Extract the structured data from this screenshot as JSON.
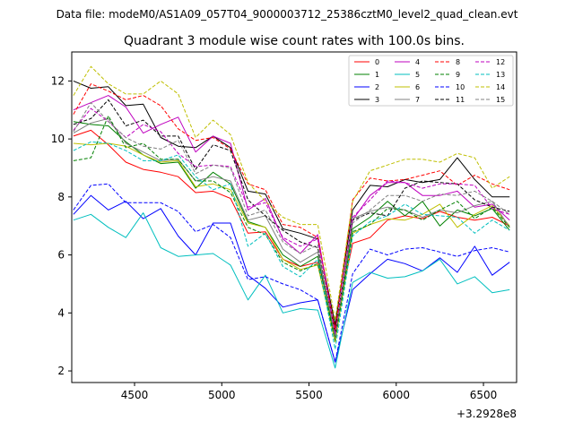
{
  "chart_data": {
    "type": "line",
    "suptitle": "Data file: modeM0/AS1A09_057T04_9000003712_25386cztM0_level2_quad_clean.evt",
    "title": "Quadrant 3 module wise count rates with 100.0s bins.",
    "xlabel": "",
    "ylabel": "",
    "x_offset_label": "+3.2928e8",
    "xlim": [
      4140,
      6690
    ],
    "ylim": [
      1.6,
      13.0
    ],
    "xticks": [
      4500,
      5000,
      5500,
      6000,
      6500
    ],
    "yticks": [
      2,
      4,
      6,
      8,
      10,
      12
    ],
    "grid": false,
    "legend": {
      "placement": "top-right",
      "columns": 4
    },
    "x": [
      4150,
      4250,
      4350,
      4450,
      4550,
      4650,
      4750,
      4850,
      4950,
      5050,
      5150,
      5250,
      5350,
      5450,
      5550,
      5650,
      5750,
      5850,
      5950,
      6050,
      6150,
      6250,
      6350,
      6450,
      6550,
      6650
    ],
    "series": [
      {
        "name": "0",
        "color": "#ff0000",
        "dash": "solid",
        "values": [
          10.1,
          10.3,
          9.8,
          9.2,
          8.95,
          8.85,
          8.7,
          8.15,
          8.2,
          7.95,
          6.75,
          6.8,
          5.85,
          5.6,
          5.75,
          3.5,
          6.4,
          6.6,
          7.2,
          7.35,
          7.25,
          7.5,
          7.3,
          7.2,
          7.3,
          7.0
        ]
      },
      {
        "name": "1",
        "color": "#008000",
        "dash": "solid",
        "values": [
          10.6,
          10.5,
          10.45,
          9.9,
          9.45,
          9.15,
          9.2,
          8.3,
          8.85,
          8.45,
          7.15,
          6.95,
          6.0,
          5.6,
          5.95,
          3.1,
          6.9,
          7.3,
          7.85,
          7.35,
          7.85,
          7.0,
          7.55,
          7.35,
          7.6,
          6.85
        ]
      },
      {
        "name": "2",
        "color": "#0000ff",
        "dash": "solid",
        "values": [
          7.4,
          8.05,
          7.55,
          7.85,
          7.25,
          7.6,
          6.65,
          6.0,
          7.1,
          7.1,
          5.3,
          4.85,
          4.2,
          4.35,
          4.45,
          2.3,
          4.8,
          5.35,
          5.85,
          5.7,
          5.45,
          5.9,
          5.4,
          6.3,
          5.3,
          5.75
        ]
      },
      {
        "name": "3",
        "color": "#000000",
        "dash": "solid",
        "values": [
          12.0,
          11.75,
          11.8,
          11.15,
          11.2,
          10.05,
          9.75,
          9.7,
          10.1,
          9.7,
          8.2,
          8.1,
          6.9,
          6.75,
          6.55,
          3.6,
          7.55,
          8.4,
          8.35,
          8.6,
          8.5,
          8.6,
          9.35,
          8.6,
          8.0,
          8.0
        ]
      },
      {
        "name": "4",
        "color": "#bf00bf",
        "dash": "solid",
        "values": [
          11.0,
          11.25,
          11.5,
          11.1,
          10.2,
          10.5,
          10.75,
          9.55,
          10.1,
          9.85,
          7.55,
          7.95,
          6.55,
          6.05,
          6.7,
          3.3,
          7.2,
          8.05,
          8.5,
          8.5,
          8.05,
          8.05,
          8.2,
          7.65,
          7.75,
          7.2
        ]
      },
      {
        "name": "5",
        "color": "#00bfbf",
        "dash": "solid",
        "values": [
          7.2,
          7.4,
          6.95,
          6.6,
          7.45,
          6.25,
          5.95,
          6.0,
          6.05,
          5.65,
          4.45,
          5.3,
          4.0,
          4.15,
          4.1,
          2.1,
          5.05,
          5.4,
          5.2,
          5.25,
          5.45,
          5.85,
          5.0,
          5.25,
          4.7,
          4.8
        ]
      },
      {
        "name": "6",
        "color": "#bfbf00",
        "dash": "solid",
        "values": [
          9.85,
          9.8,
          9.85,
          9.75,
          9.45,
          9.2,
          9.25,
          8.35,
          8.45,
          8.25,
          7.1,
          6.95,
          5.85,
          5.5,
          5.65,
          3.0,
          6.75,
          7.05,
          7.25,
          7.2,
          7.4,
          7.75,
          6.95,
          7.4,
          7.7,
          7.0
        ]
      },
      {
        "name": "7",
        "color": "#808080",
        "dash": "solid",
        "values": [
          10.2,
          10.55,
          10.7,
          9.85,
          9.55,
          9.25,
          9.3,
          8.55,
          8.7,
          8.55,
          7.2,
          7.35,
          6.2,
          5.75,
          6.1,
          3.2,
          7.25,
          7.5,
          7.65,
          7.55,
          7.3,
          7.55,
          7.45,
          7.7,
          7.85,
          6.95
        ]
      },
      {
        "name": "8",
        "color": "#ff0000",
        "dash": "dashed",
        "values": [
          10.85,
          11.9,
          11.65,
          11.35,
          11.5,
          11.15,
          10.35,
          9.95,
          10.05,
          9.65,
          8.45,
          8.25,
          7.05,
          6.95,
          6.6,
          3.4,
          7.9,
          8.65,
          8.55,
          8.6,
          8.75,
          8.9,
          8.4,
          8.75,
          8.45,
          8.25
        ]
      },
      {
        "name": "9",
        "color": "#008000",
        "dash": "dashed",
        "values": [
          9.25,
          9.35,
          10.8,
          9.7,
          9.85,
          9.3,
          9.3,
          8.55,
          8.55,
          8.15,
          6.95,
          6.7,
          5.75,
          5.45,
          5.7,
          3.05,
          6.8,
          7.05,
          7.6,
          7.55,
          7.2,
          7.55,
          7.85,
          7.25,
          7.65,
          6.95
        ]
      },
      {
        "name": "10",
        "color": "#0000ff",
        "dash": "dashed",
        "values": [
          7.55,
          8.4,
          8.45,
          7.8,
          7.8,
          7.8,
          7.5,
          6.8,
          7.05,
          6.6,
          5.15,
          5.25,
          5.0,
          4.8,
          4.45,
          2.3,
          5.35,
          6.2,
          6.0,
          6.2,
          6.25,
          6.1,
          5.95,
          6.15,
          6.25,
          6.1
        ]
      },
      {
        "name": "11",
        "color": "#000000",
        "dash": "dashed",
        "values": [
          10.5,
          10.7,
          11.35,
          10.45,
          10.65,
          10.1,
          10.1,
          8.95,
          9.8,
          9.6,
          7.9,
          7.35,
          6.85,
          6.45,
          6.25,
          3.3,
          7.2,
          7.45,
          7.35,
          8.3,
          8.55,
          8.5,
          8.45,
          7.9,
          7.65,
          7.5
        ]
      },
      {
        "name": "12",
        "color": "#bf00bf",
        "dash": "dashed",
        "values": [
          10.3,
          11.05,
          10.6,
          10.05,
          10.5,
          10.25,
          9.5,
          9.05,
          9.1,
          9.05,
          7.65,
          7.8,
          6.6,
          6.3,
          6.55,
          3.25,
          7.3,
          7.9,
          8.55,
          8.5,
          8.3,
          8.45,
          8.45,
          8.4,
          7.6,
          7.4
        ]
      },
      {
        "name": "13",
        "color": "#00bfbf",
        "dash": "dashed",
        "values": [
          9.6,
          9.9,
          9.85,
          9.6,
          9.25,
          9.25,
          9.45,
          8.7,
          8.25,
          8.45,
          6.3,
          6.75,
          5.6,
          5.25,
          5.85,
          2.75,
          6.65,
          7.15,
          7.35,
          7.75,
          7.4,
          7.35,
          7.3,
          6.75,
          7.2,
          6.85
        ]
      },
      {
        "name": "14",
        "color": "#bfbf00",
        "dash": "dashed",
        "values": [
          11.5,
          12.5,
          11.9,
          11.55,
          11.55,
          12.0,
          11.55,
          10.05,
          10.65,
          10.15,
          8.5,
          7.85,
          7.3,
          7.05,
          7.05,
          3.75,
          7.85,
          8.9,
          9.1,
          9.3,
          9.3,
          9.2,
          9.5,
          9.35,
          8.3,
          8.7
        ]
      },
      {
        "name": "15",
        "color": "#808080",
        "dash": "dashed",
        "values": [
          10.25,
          11.25,
          10.6,
          10.05,
          9.75,
          9.65,
          9.95,
          8.8,
          9.1,
          9.0,
          7.35,
          7.55,
          6.45,
          6.05,
          6.35,
          3.15,
          7.1,
          7.55,
          8.05,
          8.05,
          7.85,
          8.1,
          8.05,
          8.2,
          7.85,
          7.4
        ]
      }
    ]
  }
}
